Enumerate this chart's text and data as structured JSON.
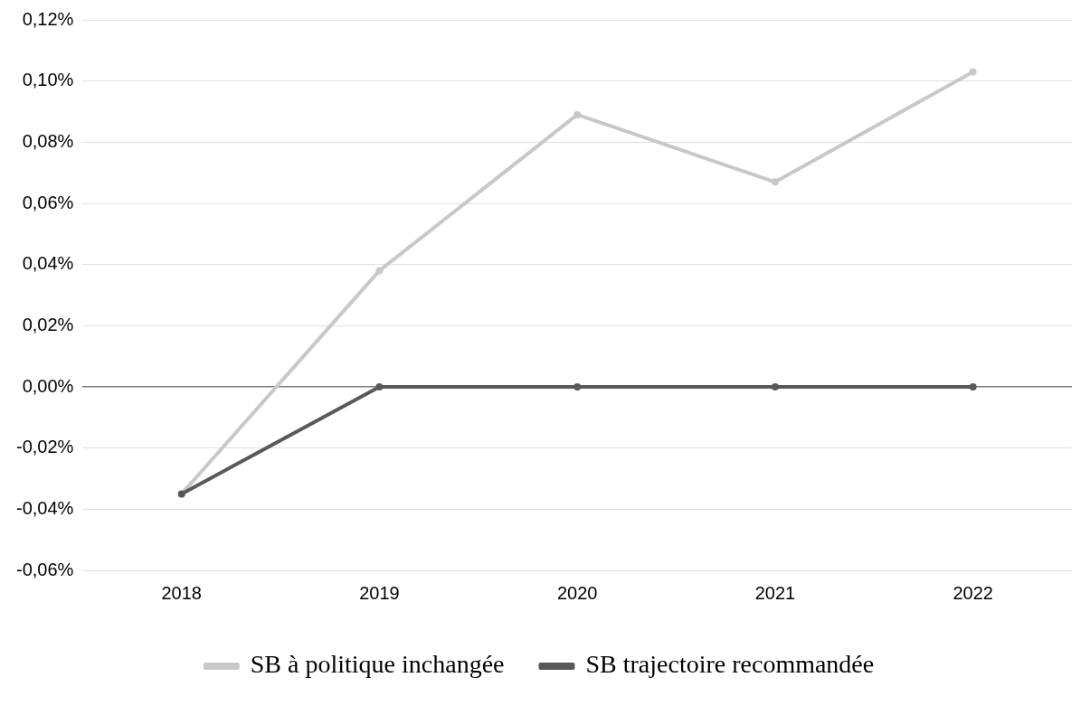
{
  "chart_data": {
    "type": "line",
    "categories": [
      "2018",
      "2019",
      "2020",
      "2021",
      "2022"
    ],
    "series": [
      {
        "name": "SB à politique inchangée",
        "color": "#c8c8c8",
        "values": [
          -0.035,
          0.038,
          0.089,
          0.067,
          0.103
        ]
      },
      {
        "name": "SB trajectoire recommandée",
        "color": "#595959",
        "values": [
          -0.035,
          0,
          0,
          0,
          0
        ]
      }
    ],
    "ylim": [
      -0.06,
      0.12
    ],
    "yticks": [
      {
        "value": -0.06,
        "label": "-0,06%"
      },
      {
        "value": -0.04,
        "label": "-0,04%"
      },
      {
        "value": -0.02,
        "label": "-0,02%"
      },
      {
        "value": 0,
        "label": "0,00%"
      },
      {
        "value": 0.02,
        "label": "0,02%"
      },
      {
        "value": 0.04,
        "label": "0,04%"
      },
      {
        "value": 0.06,
        "label": "0,06%"
      },
      {
        "value": 0.08,
        "label": "0,08%"
      },
      {
        "value": 0.1,
        "label": "0,10%"
      },
      {
        "value": 0.12,
        "label": "0,12%"
      }
    ],
    "grid": "y",
    "legend": "bottom",
    "marker": "circle",
    "line_style": "solid"
  }
}
